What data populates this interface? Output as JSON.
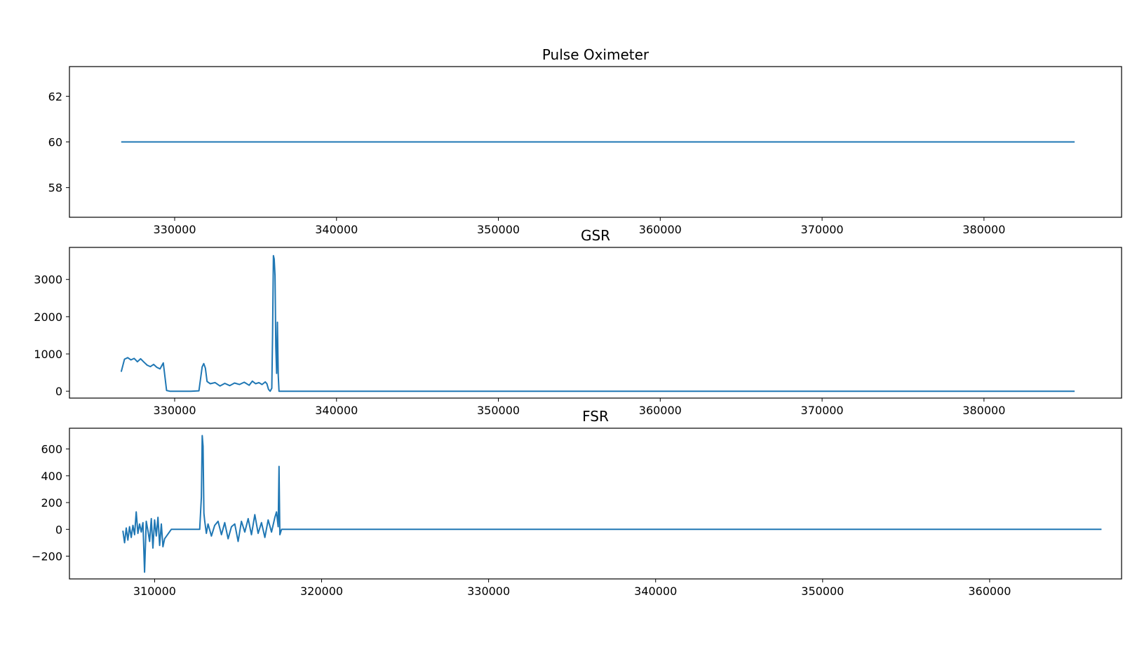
{
  "figure": {
    "line_color": "#1f77b4",
    "axis_color": "#000000",
    "background": "#ffffff"
  },
  "chart_data": [
    {
      "type": "line",
      "title": "Pulse Oximeter",
      "xlabel": "",
      "ylabel": "",
      "xlim": [
        323500,
        388500
      ],
      "ylim": [
        56.7,
        63.3
      ],
      "xticks": [
        330000,
        340000,
        350000,
        360000,
        370000,
        380000
      ],
      "xtick_labels": [
        "330000",
        "340000",
        "350000",
        "360000",
        "370000",
        "380000"
      ],
      "yticks": [
        58,
        60,
        62
      ],
      "ytick_labels": [
        "58",
        "60",
        "62"
      ],
      "grid": false,
      "series": [
        {
          "x": [
            326700,
            385600
          ],
          "y": [
            60,
            60
          ]
        }
      ]
    },
    {
      "type": "line",
      "title": "GSR",
      "xlabel": "",
      "ylabel": "",
      "xlim": [
        323500,
        388500
      ],
      "ylim": [
        -185,
        3860
      ],
      "xticks": [
        330000,
        340000,
        350000,
        360000,
        370000,
        380000
      ],
      "xtick_labels": [
        "330000",
        "340000",
        "350000",
        "360000",
        "370000",
        "380000"
      ],
      "yticks": [
        0,
        1000,
        2000,
        3000
      ],
      "ytick_labels": [
        "0",
        "1000",
        "2000",
        "3000"
      ],
      "grid": false,
      "series": [
        {
          "x": [
            326700,
            326900,
            327100,
            327300,
            327500,
            327700,
            327900,
            328100,
            328300,
            328500,
            328700,
            328900,
            329100,
            329200,
            329300,
            329500,
            329700,
            330000,
            331000,
            331500,
            331700,
            331800,
            331900,
            332000,
            332200,
            332500,
            332800,
            333100,
            333400,
            333700,
            334000,
            334300,
            334600,
            334800,
            335000,
            335200,
            335400,
            335600,
            335700,
            335800,
            335900,
            336000,
            336050,
            336100,
            336150,
            336200,
            336250,
            336300,
            336350,
            336400,
            336450,
            336500,
            336600,
            337000,
            340000,
            350000,
            360000,
            370000,
            380000,
            385600
          ],
          "y": [
            520,
            860,
            900,
            840,
            880,
            790,
            870,
            780,
            700,
            660,
            720,
            640,
            600,
            680,
            760,
            20,
            0,
            0,
            0,
            10,
            650,
            740,
            620,
            260,
            200,
            230,
            140,
            210,
            150,
            220,
            180,
            240,
            160,
            270,
            200,
            230,
            180,
            250,
            200,
            50,
            0,
            80,
            1500,
            3640,
            3550,
            3100,
            1200,
            480,
            1850,
            420,
            0,
            0,
            0,
            0,
            0,
            0,
            0,
            0,
            0,
            0
          ]
        }
      ]
    },
    {
      "type": "line",
      "title": "FSR",
      "xlabel": "",
      "ylabel": "",
      "xlim": [
        304900,
        367900
      ],
      "ylim": [
        -370,
        755
      ],
      "xticks": [
        310000,
        320000,
        330000,
        340000,
        350000,
        360000
      ],
      "xtick_labels": [
        "310000",
        "320000",
        "330000",
        "340000",
        "350000",
        "360000"
      ],
      "yticks": [
        -200,
        0,
        200,
        400,
        600
      ],
      "ytick_labels": [
        "−200",
        "0",
        "200",
        "400",
        "600"
      ],
      "grid": false,
      "series": [
        {
          "x": [
            308100,
            308200,
            308300,
            308400,
            308500,
            308600,
            308700,
            308800,
            308900,
            309000,
            309100,
            309200,
            309300,
            309400,
            309500,
            309600,
            309700,
            309800,
            309900,
            310000,
            310100,
            310200,
            310300,
            310400,
            310500,
            310600,
            311000,
            312000,
            312700,
            312800,
            312850,
            312900,
            312950,
            313000,
            313100,
            313200,
            313400,
            313600,
            313800,
            314000,
            314200,
            314400,
            314600,
            314800,
            315000,
            315200,
            315400,
            315600,
            315800,
            316000,
            316200,
            316400,
            316600,
            316800,
            317000,
            317200,
            317300,
            317400,
            317450,
            317500,
            317600,
            318000,
            320000,
            330000,
            340000,
            350000,
            360000,
            366700
          ],
          "y": [
            -10,
            -100,
            10,
            -80,
            20,
            -60,
            30,
            -40,
            130,
            -30,
            40,
            -20,
            50,
            -320,
            60,
            -10,
            -90,
            80,
            -140,
            70,
            -50,
            90,
            -120,
            40,
            -130,
            -70,
            0,
            0,
            0,
            240,
            700,
            620,
            120,
            60,
            -30,
            40,
            -50,
            30,
            60,
            -40,
            50,
            -70,
            20,
            40,
            -90,
            60,
            -20,
            80,
            -40,
            110,
            -30,
            50,
            -60,
            70,
            -20,
            90,
            130,
            20,
            470,
            -40,
            0,
            0,
            0,
            0,
            0,
            0,
            0,
            0
          ]
        }
      ]
    }
  ]
}
